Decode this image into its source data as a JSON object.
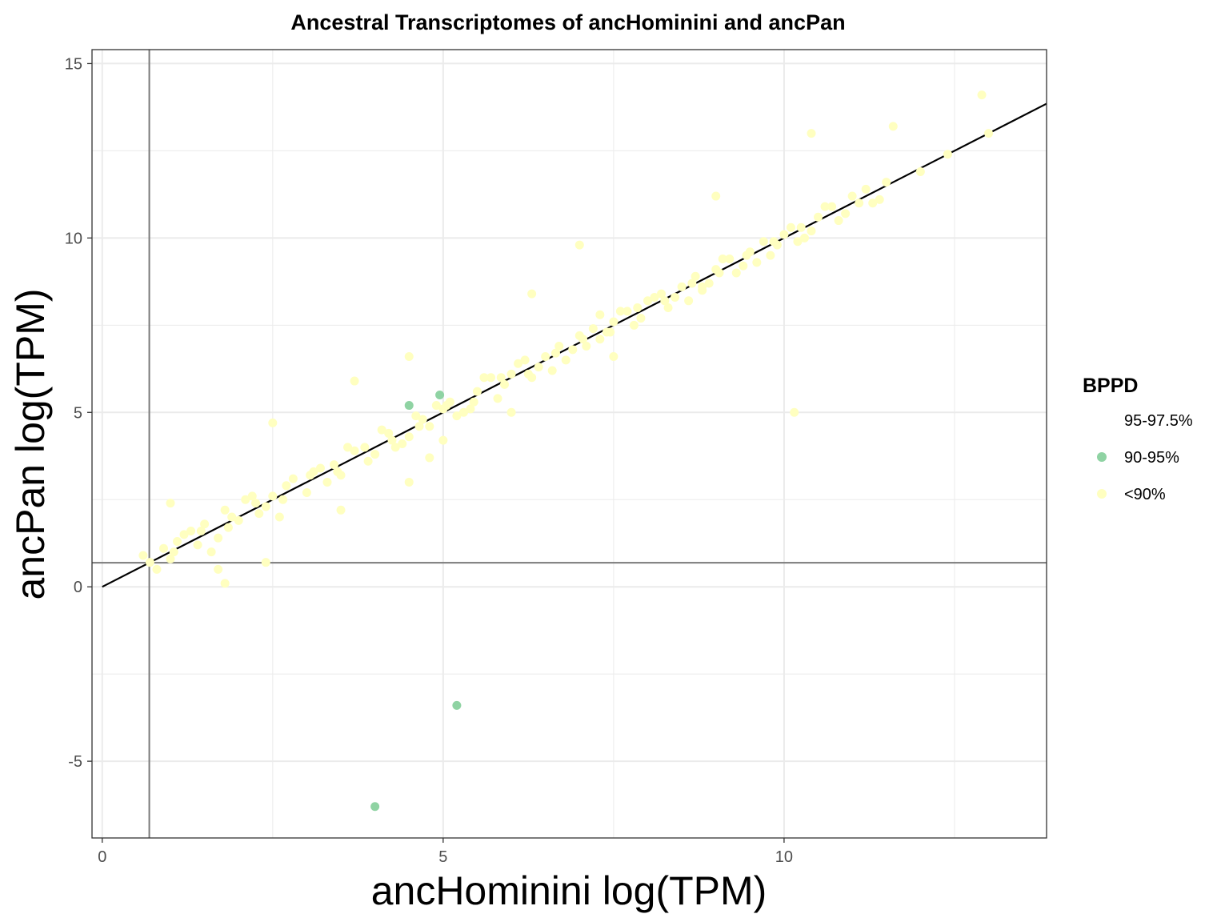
{
  "chart_data": {
    "type": "scatter",
    "title": "Ancestral Transcriptomes of ancHominini and ancPan",
    "xlabel": "ancHominini log(TPM)",
    "ylabel": "ancPan log(TPM)",
    "xlim": [
      -0.15,
      13.85
    ],
    "ylim": [
      -7.2,
      15.4
    ],
    "x_ticks": [
      0,
      5,
      10
    ],
    "y_ticks": [
      -5,
      0,
      5,
      10,
      15
    ],
    "x_tick_labels": [
      "0",
      "5",
      "10"
    ],
    "y_tick_labels": [
      "-5",
      "0",
      "5",
      "10",
      "15"
    ],
    "grid": true,
    "reference_lines": {
      "identity": {
        "slope": 1,
        "intercept": 0
      },
      "vline_x": 0.69,
      "hline_y": 0.69
    },
    "legend": {
      "title": "BPPD",
      "placement": "right",
      "entries": [
        {
          "label": "95-97.5%",
          "color": "#ffffff"
        },
        {
          "label": "90-95%",
          "color": "#8fd3a3"
        },
        {
          "label": "<90%",
          "color": "#ffffc0"
        }
      ]
    },
    "series": [
      {
        "name": "<90%",
        "color": "#ffffc0",
        "x": [
          0.6,
          0.9,
          1.0,
          1.2,
          1.4,
          1.5,
          1.7,
          1.8,
          2.0,
          2.1,
          2.3,
          2.5,
          2.7,
          3.0,
          3.2,
          3.5,
          3.7,
          4.0,
          4.2,
          4.5,
          4.8,
          5.0,
          5.2,
          5.5,
          5.8,
          6.0,
          6.3,
          6.5,
          6.8,
          7.0,
          7.3,
          7.5,
          7.8,
          8.0,
          8.3,
          8.5,
          8.8,
          9.0,
          9.3,
          9.5,
          9.8,
          10.0,
          10.3,
          10.5,
          10.8,
          11.0,
          11.3,
          11.5,
          12.0,
          12.4,
          13.0,
          0.8,
          1.1,
          1.6,
          2.2,
          2.6,
          3.3,
          3.6,
          4.3,
          4.6,
          5.3,
          5.6,
          6.2,
          6.6,
          7.1,
          7.6,
          8.1,
          8.6,
          9.1,
          9.6,
          10.2,
          10.6,
          11.1,
          1.3,
          1.9,
          2.4,
          2.8,
          3.1,
          3.4,
          3.9,
          4.1,
          4.4,
          4.7,
          4.9,
          5.1,
          5.4,
          5.7,
          5.9,
          6.1,
          6.4,
          6.7,
          6.9,
          7.2,
          7.4,
          7.7,
          7.9,
          8.2,
          8.4,
          8.7,
          8.9,
          9.2,
          9.4,
          9.7,
          9.9,
          10.1,
          10.4,
          10.7,
          10.9,
          11.2,
          11.4,
          0.7,
          1.05,
          1.45,
          1.85,
          2.25,
          2.65,
          3.05,
          3.45,
          3.85,
          4.25,
          4.65,
          5.05,
          5.45,
          5.85,
          6.25,
          6.65,
          7.05,
          7.45,
          7.85,
          8.25,
          8.65,
          9.05,
          9.45,
          9.85,
          10.25,
          3.7,
          2.5,
          4.8,
          7.0,
          9.0,
          10.4,
          11.6,
          12.9,
          10.15,
          1.8,
          1.7,
          2.4,
          3.5,
          4.5,
          5.0,
          6.3,
          7.5,
          8.8,
          6.0,
          1.0,
          4.5,
          7.3
        ],
        "y": [
          0.9,
          1.1,
          0.8,
          1.5,
          1.2,
          1.8,
          1.4,
          2.2,
          1.9,
          2.5,
          2.1,
          2.6,
          2.9,
          2.7,
          3.4,
          3.2,
          3.9,
          3.8,
          4.4,
          4.3,
          4.6,
          5.1,
          4.9,
          5.6,
          5.4,
          6.1,
          6.0,
          6.6,
          6.5,
          7.2,
          7.1,
          7.6,
          7.5,
          8.2,
          8.0,
          8.6,
          8.5,
          9.1,
          9.0,
          9.6,
          9.5,
          10.1,
          10.0,
          10.6,
          10.5,
          11.2,
          11.0,
          11.6,
          11.9,
          12.4,
          13.0,
          0.5,
          1.3,
          1.0,
          2.6,
          2.0,
          3.0,
          4.0,
          4.0,
          4.9,
          5.0,
          6.0,
          6.5,
          6.2,
          6.9,
          7.9,
          8.3,
          8.2,
          9.4,
          9.3,
          9.9,
          10.9,
          11.0,
          1.6,
          2.0,
          2.3,
          3.1,
          3.3,
          3.5,
          3.6,
          4.5,
          4.1,
          4.8,
          5.2,
          5.3,
          5.1,
          6.0,
          5.8,
          6.4,
          6.3,
          6.9,
          6.8,
          7.4,
          7.3,
          7.9,
          7.7,
          8.4,
          8.3,
          8.9,
          8.7,
          9.4,
          9.2,
          9.9,
          9.8,
          10.3,
          10.2,
          10.9,
          10.7,
          11.4,
          11.1,
          0.7,
          1.0,
          1.6,
          1.7,
          2.4,
          2.5,
          3.2,
          3.3,
          4.0,
          4.2,
          4.6,
          5.2,
          5.3,
          6.0,
          6.1,
          6.7,
          7.1,
          7.3,
          8.0,
          8.2,
          8.7,
          9.0,
          9.5,
          9.9,
          10.3,
          5.9,
          4.7,
          3.7,
          9.8,
          11.2,
          13.0,
          13.2,
          14.1,
          5.0,
          0.1,
          0.5,
          0.7,
          2.2,
          3.0,
          4.2,
          8.4,
          6.6,
          8.6,
          5.0,
          2.4,
          6.6,
          7.8
        ]
      },
      {
        "name": "90-95%",
        "color": "#8fd3a3",
        "x": [
          4.5,
          4.95,
          5.2,
          4.0
        ],
        "y": [
          5.2,
          5.5,
          -3.4,
          -6.3
        ]
      }
    ]
  }
}
